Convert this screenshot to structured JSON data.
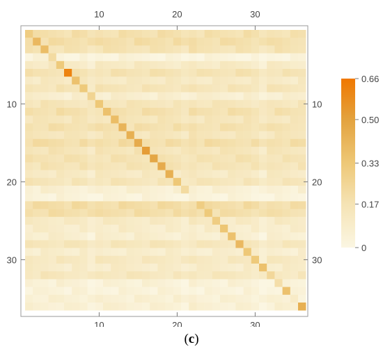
{
  "caption": {
    "open": "(",
    "letter": "c",
    "close": ")"
  },
  "chart_data": {
    "type": "heatmap",
    "title": "",
    "xlabel": "",
    "ylabel": "",
    "n": 36,
    "x_ticks": [
      10,
      20,
      30
    ],
    "y_ticks": [
      10,
      20,
      30
    ],
    "colorbar": {
      "min": 0,
      "max": 0.66,
      "tick_values": [
        0,
        0.17,
        0.33,
        0.5,
        0.66
      ],
      "tick_labels": [
        "0",
        "0.17",
        "0.33",
        "0.50",
        "0.66"
      ],
      "color_stops": [
        "#fbf6e2",
        "#f5e3b4",
        "#eec877",
        "#e3a23e",
        "#f07800"
      ]
    },
    "row_levels": [
      0.24,
      0.26,
      0.22,
      0.03,
      0.14,
      0.22,
      0.15,
      0.2,
      0.09,
      0.19,
      0.24,
      0.19,
      0.24,
      0.19,
      0.26,
      0.2,
      0.22,
      0.21,
      0.15,
      0.19,
      0.07,
      0.03,
      0.27,
      0.26,
      0.14,
      0.11,
      0.09,
      0.18,
      0.1,
      0.16,
      0.12,
      0.17,
      0.05,
      0.04,
      0.07,
      0.07
    ],
    "col_levels": [
      0.2,
      0.18,
      0.2,
      0.19,
      0.2,
      0.17,
      0.19,
      0.18,
      0.1,
      0.19,
      0.18,
      0.19,
      0.2,
      0.18,
      0.19,
      0.19,
      0.18,
      0.19,
      0.18,
      0.17,
      0.12,
      0.2,
      0.16,
      0.18,
      0.17,
      0.17,
      0.18,
      0.17,
      0.18,
      0.15,
      0.06,
      0.16,
      0.17,
      0.16,
      0.15,
      0.16
    ],
    "diagonal": [
      0.3,
      0.4,
      0.38,
      0.22,
      0.32,
      0.62,
      0.36,
      0.32,
      0.26,
      0.33,
      0.36,
      0.38,
      0.42,
      0.44,
      0.46,
      0.52,
      0.48,
      0.46,
      0.44,
      0.33,
      0.22,
      0.05,
      0.3,
      0.32,
      0.3,
      0.34,
      0.36,
      0.4,
      0.33,
      0.32,
      0.36,
      0.24,
      0.2,
      0.36,
      0.1,
      0.44
    ]
  }
}
